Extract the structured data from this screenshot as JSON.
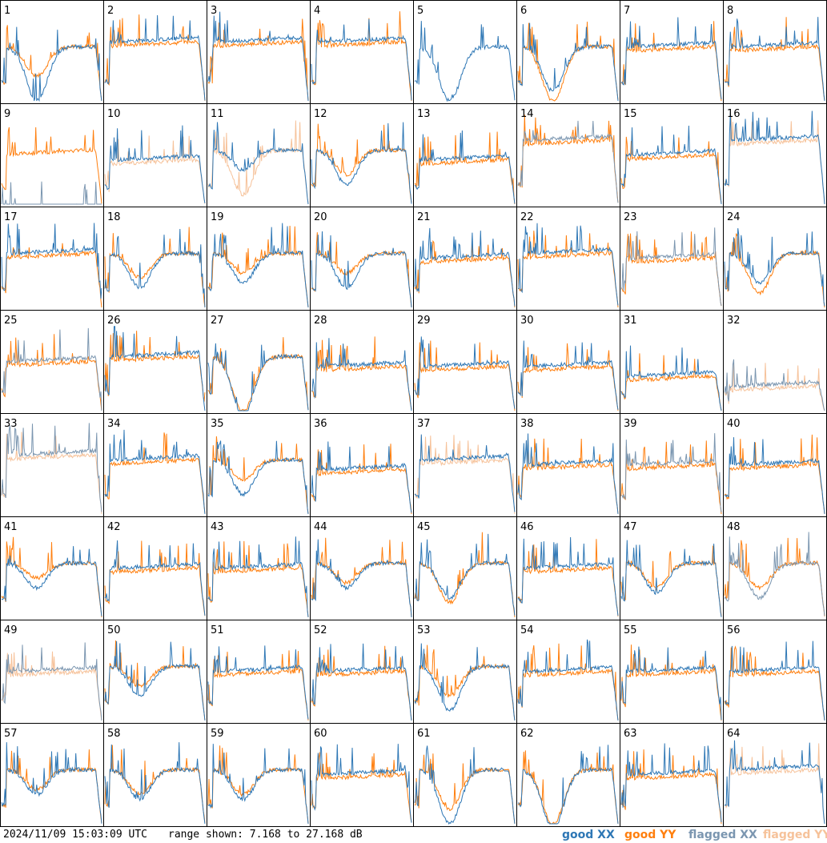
{
  "footer": {
    "timestamp": "2024/11/09 15:03:09 UTC",
    "range": "range shown: 7.168 to 27.168 dB"
  },
  "legend": {
    "good_xx": {
      "label": "good XX",
      "color": "#2e77b5"
    },
    "good_yy": {
      "label": "good YY",
      "color": "#ff7f0e"
    },
    "flagged_xx": {
      "label": "flagged XX",
      "color": "#7b96b0"
    },
    "flagged_yy": {
      "label": "flagged YY",
      "color": "#f6c29a"
    }
  },
  "chart_data": {
    "type": "line",
    "grid": true,
    "panels": [
      {
        "label": "1",
        "xx": "good",
        "yy": "good",
        "shape": "dip",
        "dip": [
          0.55,
          0.3
        ]
      },
      {
        "label": "2",
        "xx": "good",
        "yy": "good",
        "shape": "flat",
        "level": 0.6
      },
      {
        "label": "3",
        "xx": "good",
        "yy": "good",
        "shape": "flat",
        "level": 0.6
      },
      {
        "label": "4",
        "xx": "good",
        "yy": "good",
        "shape": "flat",
        "level": 0.6
      },
      {
        "label": "5",
        "xx": "good",
        "yy": "none",
        "shape": "dip",
        "dip": [
          0.55,
          0.0
        ]
      },
      {
        "label": "6",
        "xx": "good",
        "yy": "good",
        "shape": "dip",
        "dip": [
          0.45,
          0.55
        ]
      },
      {
        "label": "7",
        "xx": "good",
        "yy": "good",
        "shape": "flat",
        "level": 0.55
      },
      {
        "label": "8",
        "xx": "good",
        "yy": "good",
        "shape": "flat",
        "level": 0.55
      },
      {
        "label": "9",
        "xx": "flagged",
        "yy": "good",
        "shape": "flat",
        "level": 0.55
      },
      {
        "label": "10",
        "xx": "good",
        "yy": "flagged",
        "shape": "flat",
        "level": 0.45
      },
      {
        "label": "11",
        "xx": "good",
        "yy": "flagged",
        "shape": "dip",
        "dip": [
          0.2,
          0.45
        ]
      },
      {
        "label": "12",
        "xx": "good",
        "yy": "good",
        "shape": "dip",
        "dip": [
          0.35,
          0.25
        ]
      },
      {
        "label": "13",
        "xx": "good",
        "yy": "good",
        "shape": "flat",
        "level": 0.45
      },
      {
        "label": "14",
        "xx": "flagged",
        "yy": "good",
        "shape": "flat",
        "level": 0.65
      },
      {
        "label": "15",
        "xx": "good",
        "yy": "good",
        "shape": "flat",
        "level": 0.5
      },
      {
        "label": "16",
        "xx": "good",
        "yy": "flagged",
        "shape": "flat",
        "level": 0.65
      },
      {
        "label": "17",
        "xx": "good",
        "yy": "good",
        "shape": "flat",
        "level": 0.55
      },
      {
        "label": "18",
        "xx": "good",
        "yy": "good",
        "shape": "dip",
        "dip": [
          0.35,
          0.25
        ]
      },
      {
        "label": "19",
        "xx": "good",
        "yy": "good",
        "shape": "dip",
        "dip": [
          0.3,
          0.2
        ]
      },
      {
        "label": "20",
        "xx": "good",
        "yy": "good",
        "shape": "dip",
        "dip": [
          0.35,
          0.2
        ]
      },
      {
        "label": "21",
        "xx": "good",
        "yy": "good",
        "shape": "flat",
        "level": 0.5
      },
      {
        "label": "22",
        "xx": "good",
        "yy": "good",
        "shape": "flat",
        "level": 0.55
      },
      {
        "label": "23",
        "xx": "flagged",
        "yy": "good",
        "shape": "flat",
        "level": 0.5
      },
      {
        "label": "24",
        "xx": "good",
        "yy": "good",
        "shape": "dip",
        "dip": [
          0.3,
          0.4
        ]
      },
      {
        "label": "25",
        "xx": "flagged",
        "yy": "good",
        "shape": "flat",
        "level": 0.5
      },
      {
        "label": "26",
        "xx": "good",
        "yy": "good",
        "shape": "flat",
        "level": 0.55
      },
      {
        "label": "27",
        "xx": "good",
        "yy": "good",
        "shape": "dip",
        "dip": [
          0.6,
          0.55
        ]
      },
      {
        "label": "28",
        "xx": "good",
        "yy": "good",
        "shape": "flat",
        "level": 0.45
      },
      {
        "label": "29",
        "xx": "good",
        "yy": "good",
        "shape": "flat",
        "level": 0.45
      },
      {
        "label": "30",
        "xx": "good",
        "yy": "good",
        "shape": "flat",
        "level": 0.45
      },
      {
        "label": "31",
        "xx": "good",
        "yy": "good",
        "shape": "flat",
        "level": 0.35
      },
      {
        "label": "32",
        "xx": "flagged",
        "yy": "flagged",
        "shape": "flat",
        "level": 0.25
      },
      {
        "label": "33",
        "xx": "flagged",
        "yy": "flagged",
        "shape": "flat",
        "level": 0.6
      },
      {
        "label": "34",
        "xx": "good",
        "yy": "good",
        "shape": "flat",
        "level": 0.55
      },
      {
        "label": "35",
        "xx": "good",
        "yy": "good",
        "shape": "dip",
        "dip": [
          0.35,
          0.2
        ]
      },
      {
        "label": "36",
        "xx": "good",
        "yy": "good",
        "shape": "flat",
        "level": 0.45
      },
      {
        "label": "37",
        "xx": "good",
        "yy": "flagged",
        "shape": "flat",
        "level": 0.55
      },
      {
        "label": "38",
        "xx": "good",
        "yy": "good",
        "shape": "flat",
        "level": 0.5
      },
      {
        "label": "39",
        "xx": "flagged",
        "yy": "good",
        "shape": "flat",
        "level": 0.5
      },
      {
        "label": "40",
        "xx": "good",
        "yy": "good",
        "shape": "flat",
        "level": 0.5
      },
      {
        "label": "41",
        "xx": "good",
        "yy": "good",
        "shape": "dip",
        "dip": [
          0.25,
          0.15
        ]
      },
      {
        "label": "42",
        "xx": "good",
        "yy": "good",
        "shape": "flat",
        "level": 0.5
      },
      {
        "label": "43",
        "xx": "good",
        "yy": "good",
        "shape": "flat",
        "level": 0.5
      },
      {
        "label": "44",
        "xx": "good",
        "yy": "good",
        "shape": "dip",
        "dip": [
          0.25,
          0.2
        ]
      },
      {
        "label": "45",
        "xx": "good",
        "yy": "good",
        "shape": "dip",
        "dip": [
          0.35,
          0.4
        ]
      },
      {
        "label": "46",
        "xx": "good",
        "yy": "good",
        "shape": "flat",
        "level": 0.5
      },
      {
        "label": "47",
        "xx": "good",
        "yy": "good",
        "shape": "dip",
        "dip": [
          0.3,
          0.25
        ]
      },
      {
        "label": "48",
        "xx": "flagged",
        "yy": "good",
        "shape": "dip",
        "dip": [
          0.35,
          0.25
        ]
      },
      {
        "label": "49",
        "xx": "flagged",
        "yy": "flagged",
        "shape": "flat",
        "level": 0.5
      },
      {
        "label": "50",
        "xx": "good",
        "yy": "good",
        "shape": "dip",
        "dip": [
          0.3,
          0.2
        ]
      },
      {
        "label": "51",
        "xx": "good",
        "yy": "good",
        "shape": "flat",
        "level": 0.5
      },
      {
        "label": "52",
        "xx": "good",
        "yy": "good",
        "shape": "flat",
        "level": 0.5
      },
      {
        "label": "53",
        "xx": "good",
        "yy": "good",
        "shape": "dip",
        "dip": [
          0.45,
          0.3
        ]
      },
      {
        "label": "54",
        "xx": "good",
        "yy": "good",
        "shape": "flat",
        "level": 0.5
      },
      {
        "label": "55",
        "xx": "good",
        "yy": "good",
        "shape": "flat",
        "level": 0.5
      },
      {
        "label": "56",
        "xx": "good",
        "yy": "good",
        "shape": "flat",
        "level": 0.5
      },
      {
        "label": "57",
        "xx": "good",
        "yy": "good",
        "shape": "dip",
        "dip": [
          0.25,
          0.2
        ]
      },
      {
        "label": "58",
        "xx": "good",
        "yy": "good",
        "shape": "dip",
        "dip": [
          0.3,
          0.25
        ]
      },
      {
        "label": "59",
        "xx": "good",
        "yy": "good",
        "shape": "dip",
        "dip": [
          0.3,
          0.25
        ]
      },
      {
        "label": "60",
        "xx": "good",
        "yy": "good",
        "shape": "flat",
        "level": 0.5
      },
      {
        "label": "61",
        "xx": "good",
        "yy": "good",
        "shape": "dip",
        "dip": [
          0.55,
          0.4
        ]
      },
      {
        "label": "62",
        "xx": "good",
        "yy": "good",
        "shape": "dip",
        "dip": [
          0.6,
          0.55
        ]
      },
      {
        "label": "63",
        "xx": "good",
        "yy": "good",
        "shape": "flat",
        "level": 0.5
      },
      {
        "label": "64",
        "xx": "good",
        "yy": "flagged",
        "shape": "flat",
        "level": 0.55
      }
    ]
  }
}
